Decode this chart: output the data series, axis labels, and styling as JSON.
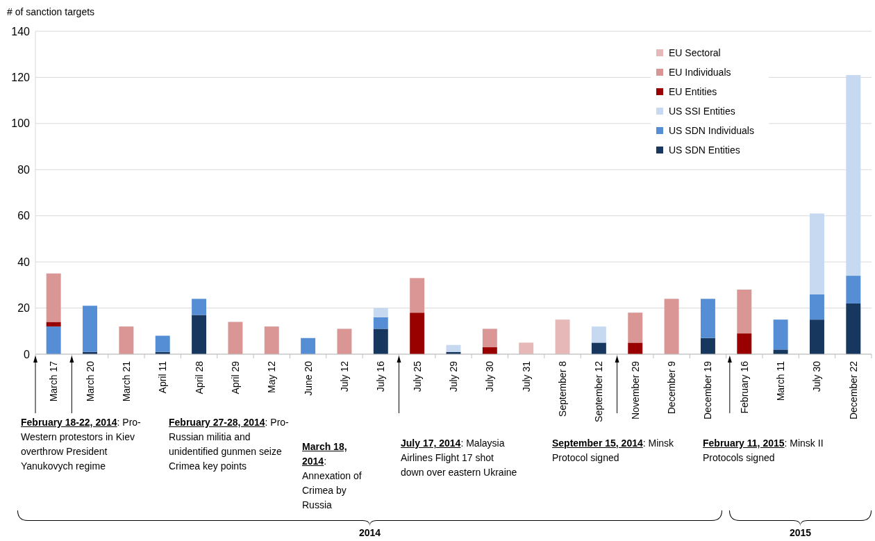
{
  "chart_data": {
    "type": "bar",
    "stacked": true,
    "ylabel": "# of sanction targets",
    "categories": [
      "March 17",
      "March 20",
      "March 21",
      "April 11",
      "April 28",
      "April 29",
      "May 12",
      "June 20",
      "July 12",
      "July 16",
      "July 25",
      "July 29",
      "July 30",
      "July 31",
      "September 8",
      "September 12",
      "November 29",
      "December 9",
      "December 19",
      "February 16",
      "March 11",
      "July 30",
      "December 22"
    ],
    "series": [
      {
        "name": "US SDN Entities",
        "color": "#17375e",
        "values": [
          0,
          1,
          0,
          1,
          17,
          0,
          0,
          0,
          0,
          11,
          0,
          1,
          0,
          0,
          0,
          5,
          0,
          0,
          7,
          0,
          2,
          15,
          22
        ]
      },
      {
        "name": "US SDN Individuals",
        "color": "#558ed5",
        "values": [
          12,
          20,
          0,
          7,
          7,
          0,
          0,
          7,
          0,
          5,
          0,
          0,
          0,
          0,
          0,
          0,
          0,
          0,
          17,
          0,
          13,
          11,
          12
        ]
      },
      {
        "name": "US SSI Entities",
        "color": "#c6d9f1",
        "values": [
          0,
          0,
          0,
          0,
          0,
          0,
          0,
          0,
          0,
          4,
          0,
          3,
          0,
          0,
          0,
          7,
          0,
          0,
          0,
          0,
          0,
          35,
          87
        ]
      },
      {
        "name": "EU Entities",
        "color": "#990000",
        "values": [
          2,
          0,
          0,
          0,
          0,
          0,
          0,
          0,
          0,
          0,
          18,
          0,
          3,
          0,
          0,
          0,
          5,
          0,
          0,
          9,
          0,
          0,
          0
        ]
      },
      {
        "name": "EU Individuals",
        "color": "#d99694",
        "values": [
          21,
          0,
          12,
          0,
          0,
          14,
          12,
          0,
          11,
          0,
          15,
          0,
          8,
          0,
          0,
          0,
          13,
          24,
          0,
          19,
          0,
          0,
          0
        ]
      },
      {
        "name": "EU Sectoral",
        "color": "#e6b9b8",
        "values": [
          0,
          0,
          0,
          0,
          0,
          0,
          0,
          0,
          0,
          0,
          0,
          0,
          0,
          5,
          15,
          0,
          0,
          0,
          0,
          0,
          0,
          0,
          0
        ]
      }
    ],
    "ylim": [
      0,
      140
    ],
    "yticks": [
      0,
      20,
      40,
      60,
      80,
      100,
      120,
      140
    ],
    "grid": "y",
    "legend": "top right",
    "annotations": [
      "February 18-22, 2014: Pro-Western protestors in Kiev overthrow  President Yanukovych regime",
      "February 27-28, 2014: Pro-Russian militia and unidentified gunmen seize Crimea key points",
      "March 18, 2014: Annexation of Crimea  by Russia",
      "July 17, 2014: Malaysia Airlines Flight 17 shot down over eastern Ukraine",
      "September 15, 2014: Minsk Protocol signed",
      "February 11, 2015: Minsk II Protocols signed",
      "2014",
      "2015"
    ]
  }
}
